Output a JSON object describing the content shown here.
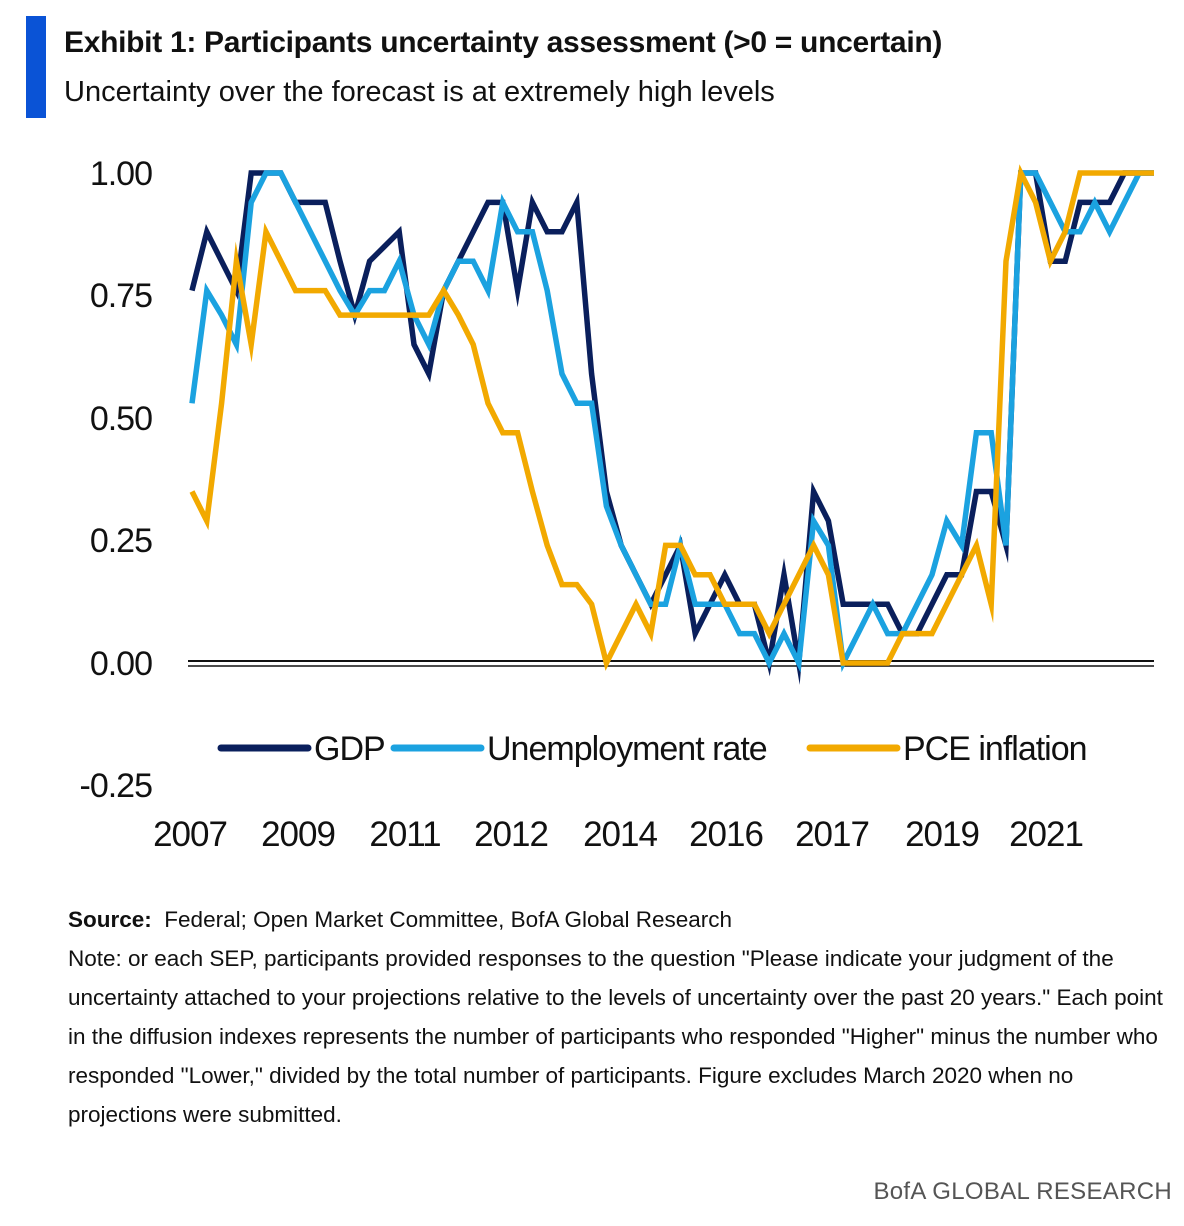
{
  "header": {
    "title": "Exhibit 1: Participants uncertainty assessment (>0 = uncertain)",
    "subtitle": "Uncertainty over the forecast is at extremely high levels"
  },
  "colors": {
    "accent": "#0a53d6",
    "gdp": "#0a1f5c",
    "unemployment": "#1ba2e0",
    "pce": "#f2a900"
  },
  "chart_data": {
    "type": "line",
    "title": "",
    "xlabel": "",
    "ylabel": "",
    "ylim": [
      -0.25,
      1.0
    ],
    "yticks": [
      "1.00",
      "0.75",
      "0.50",
      "0.25",
      "0.00",
      "-0.25"
    ],
    "xticks": [
      "2007",
      "2009",
      "2011",
      "2012",
      "2014",
      "2016",
      "2017",
      "2019",
      "2021"
    ],
    "grid": false,
    "legend_position": "bottom inside plot",
    "series": [
      {
        "name": "GDP",
        "color": "#0a1f5c",
        "values": [
          0.76,
          0.88,
          0.82,
          0.76,
          1.0,
          1.0,
          1.0,
          0.94,
          0.94,
          0.94,
          0.82,
          0.71,
          0.82,
          0.85,
          0.88,
          0.65,
          0.59,
          0.76,
          0.82,
          0.88,
          0.94,
          0.94,
          0.76,
          0.94,
          0.88,
          0.88,
          0.94,
          0.59,
          0.35,
          0.24,
          0.18,
          0.12,
          0.18,
          0.24,
          0.06,
          0.12,
          0.18,
          0.12,
          0.12,
          0.0,
          0.18,
          0.0,
          0.35,
          0.29,
          0.12,
          0.12,
          0.12,
          0.12,
          0.06,
          0.06,
          0.12,
          0.18,
          0.18,
          0.35,
          0.35,
          0.24,
          1.0,
          1.0,
          0.82,
          0.82,
          0.94,
          0.94,
          0.94,
          1.0,
          1.0,
          1.0
        ]
      },
      {
        "name": "Unemployment rate",
        "color": "#1ba2e0",
        "values": [
          0.53,
          0.76,
          0.71,
          0.65,
          0.94,
          1.0,
          1.0,
          0.94,
          0.88,
          0.82,
          0.76,
          0.71,
          0.76,
          0.76,
          0.82,
          0.71,
          0.65,
          0.76,
          0.82,
          0.82,
          0.76,
          0.94,
          0.88,
          0.88,
          0.76,
          0.59,
          0.53,
          0.53,
          0.32,
          0.24,
          0.18,
          0.12,
          0.12,
          0.24,
          0.12,
          0.12,
          0.12,
          0.06,
          0.06,
          0.0,
          0.06,
          0.0,
          0.29,
          0.24,
          0.0,
          0.06,
          0.12,
          0.06,
          0.06,
          0.12,
          0.18,
          0.29,
          0.24,
          0.47,
          0.47,
          0.24,
          1.0,
          1.0,
          0.94,
          0.88,
          0.88,
          0.94,
          0.88,
          0.94,
          1.0,
          1.0
        ]
      },
      {
        "name": "PCE inflation",
        "color": "#f2a900",
        "values": [
          0.35,
          0.29,
          0.53,
          0.82,
          0.65,
          0.88,
          0.82,
          0.76,
          0.76,
          0.76,
          0.71,
          0.71,
          0.71,
          0.71,
          0.71,
          0.71,
          0.71,
          0.76,
          0.71,
          0.65,
          0.53,
          0.47,
          0.47,
          0.35,
          0.24,
          0.16,
          0.16,
          0.12,
          0.0,
          0.06,
          0.12,
          0.06,
          0.24,
          0.24,
          0.18,
          0.18,
          0.12,
          0.12,
          0.12,
          0.06,
          0.12,
          0.18,
          0.24,
          0.18,
          0.0,
          0.0,
          0.0,
          0.0,
          0.06,
          0.06,
          0.06,
          0.12,
          0.18,
          0.24,
          0.12,
          0.82,
          1.0,
          0.94,
          0.82,
          0.88,
          1.0,
          1.0,
          1.0,
          1.0,
          1.0,
          1.0
        ]
      }
    ]
  },
  "notes": {
    "source_label": "Source:",
    "source_text": "Federal; Open Market Committee, BofA Global Research",
    "note_text": "Note: or each SEP, participants provided responses to the question \"Please indicate your judgment of the uncertainty attached to your projections relative to the levels of uncertainty over the past 20 years.\" Each point in the diffusion indexes represents the number of participants who responded \"Higher\" minus the number who responded \"Lower,\" divided by the total number of participants. Figure excludes March 2020 when no projections were submitted."
  },
  "footer": {
    "brand": "BofA GLOBAL RESEARCH"
  }
}
